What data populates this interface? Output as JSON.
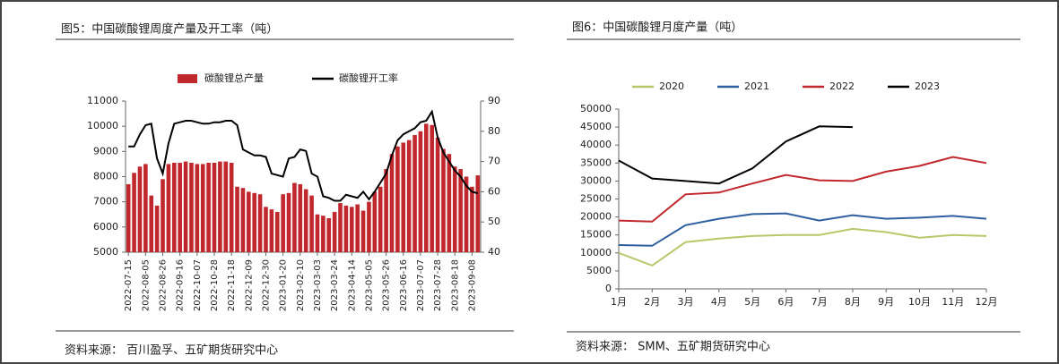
{
  "chart_data": [
    {
      "type": "bar",
      "title": "图5：中国碳酸锂周度产量及开工率（吨）",
      "source": "资料来源：  百川盈孚、五矿期货研究中心",
      "categories": [
        "2022-07-15",
        null,
        null,
        "2022-08-05",
        null,
        null,
        "2022-08-26",
        null,
        null,
        "2022-09-16",
        null,
        null,
        "2022-10-07",
        null,
        null,
        "2022-10-28",
        null,
        null,
        "2022-11-18",
        null,
        null,
        "2022-12-09",
        null,
        null,
        "2022-12-30",
        null,
        null,
        "2023-01-20",
        null,
        null,
        "2023-02-10",
        null,
        null,
        "2023-03-03",
        null,
        null,
        "2023-03-24",
        null,
        null,
        "2023-04-14",
        null,
        null,
        "2023-05-05",
        null,
        null,
        "2023-05-26",
        null,
        null,
        "2023-06-16",
        null,
        null,
        "2023-07-07",
        null,
        null,
        "2023-07-28",
        null,
        null,
        "2023-08-18",
        null,
        null,
        "2023-09-08",
        null
      ],
      "series": [
        {
          "name": "碳酸锂总产量",
          "type": "bar",
          "color": "#c0282d",
          "values": [
            7700,
            8150,
            8400,
            8500,
            7250,
            6850,
            7900,
            8500,
            8550,
            8550,
            8600,
            8550,
            8500,
            8500,
            8550,
            8550,
            8600,
            8600,
            8550,
            7600,
            7550,
            7400,
            7350,
            7300,
            6800,
            6700,
            6600,
            7300,
            7350,
            7750,
            7700,
            7500,
            7250,
            6500,
            6450,
            6350,
            6600,
            6950,
            6850,
            6800,
            6900,
            6650,
            7000,
            7400,
            7600,
            8300,
            8900,
            9200,
            9350,
            9450,
            9650,
            9800,
            10100,
            10050,
            9550,
            9100,
            8900,
            8400,
            8300,
            8000,
            7600,
            8050
          ]
        },
        {
          "name": "碳酸锂开工率",
          "type": "line",
          "axis": "y2",
          "color": "#000000",
          "values": [
            75,
            75,
            79,
            82,
            82.5,
            71,
            66,
            76,
            82.5,
            83,
            83.5,
            83.5,
            83,
            82.5,
            82.5,
            83,
            83,
            83.5,
            83.5,
            82,
            74,
            73,
            72,
            72,
            71.5,
            66,
            65.5,
            65,
            71,
            71.5,
            74,
            73.5,
            66,
            65,
            58.5,
            58,
            57,
            57,
            59,
            58.5,
            58,
            60,
            57.5,
            60,
            63,
            66,
            72,
            77,
            79,
            80,
            81,
            83,
            83.5,
            86.5,
            78,
            73,
            70,
            67,
            65,
            62,
            60,
            59.5
          ]
        }
      ],
      "ylim": [
        5000,
        11000
      ],
      "yticks": [
        5000,
        6000,
        7000,
        8000,
        9000,
        10000,
        11000
      ],
      "y2lim": [
        40,
        90
      ],
      "y2ticks": [
        40,
        50,
        60,
        70,
        80,
        90
      ]
    },
    {
      "type": "line",
      "title": "图6：中国碳酸锂月度产量（吨）",
      "source": "资料来源：  SMM、五矿期货研究中心",
      "categories": [
        "1月",
        "2月",
        "3月",
        "4月",
        "5月",
        "6月",
        "7月",
        "8月",
        "9月",
        "10月",
        "11月",
        "12月"
      ],
      "series": [
        {
          "name": "2020",
          "color": "#b5c96a",
          "values": [
            10000,
            6500,
            13000,
            14000,
            14700,
            15000,
            15000,
            16700,
            15800,
            14200,
            15000,
            14700
          ]
        },
        {
          "name": "2021",
          "color": "#2e5f9e",
          "values": [
            12200,
            12000,
            17700,
            19500,
            20800,
            21000,
            19000,
            20500,
            19500,
            19800,
            20300,
            19500
          ]
        },
        {
          "name": "2022",
          "color": "#c0282d",
          "values": [
            19000,
            18700,
            26300,
            26800,
            29300,
            31700,
            30200,
            30000,
            32600,
            34200,
            36700,
            35000
          ]
        },
        {
          "name": "2023",
          "color": "#000000",
          "values": [
            35700,
            30700,
            30000,
            29300,
            33500,
            41000,
            45200,
            45000,
            null,
            null,
            null,
            null
          ]
        }
      ],
      "ylim": [
        0,
        50000
      ],
      "yticks": [
        0,
        5000,
        10000,
        15000,
        20000,
        25000,
        30000,
        35000,
        40000,
        45000,
        50000
      ]
    }
  ]
}
